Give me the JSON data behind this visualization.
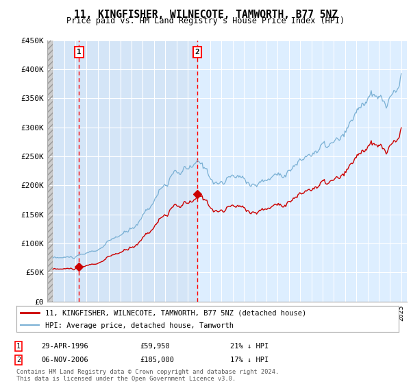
{
  "title": "11, KINGFISHER, WILNECOTE, TAMWORTH, B77 5NZ",
  "subtitle": "Price paid vs. HM Land Registry's House Price Index (HPI)",
  "ylim": [
    0,
    450000
  ],
  "yticks": [
    0,
    50000,
    100000,
    150000,
    200000,
    250000,
    300000,
    350000,
    400000,
    450000
  ],
  "ytick_labels": [
    "£0",
    "£50K",
    "£100K",
    "£150K",
    "£200K",
    "£250K",
    "£300K",
    "£350K",
    "£400K",
    "£450K"
  ],
  "sale1_year": 1996.33,
  "sale1_price": 59950,
  "sale1_label": "29-APR-1996",
  "sale1_amount": "£59,950",
  "sale1_hpi": "21% ↓ HPI",
  "sale2_year": 2006.85,
  "sale2_price": 185000,
  "sale2_label": "06-NOV-2006",
  "sale2_amount": "£185,000",
  "sale2_hpi": "17% ↓ HPI",
  "legend_line1": "11, KINGFISHER, WILNECOTE, TAMWORTH, B77 5NZ (detached house)",
  "legend_line2": "HPI: Average price, detached house, Tamworth",
  "footer": "Contains HM Land Registry data © Crown copyright and database right 2024.\nThis data is licensed under the Open Government Licence v3.0.",
  "bg_color": "#ddeeff",
  "hatch_bg": "#d0d0d0",
  "line_red": "#cc0000",
  "line_blue": "#7ab0d4",
  "xmin": 1993.5,
  "xmax": 2025.5,
  "highlight_end": 2007.0
}
